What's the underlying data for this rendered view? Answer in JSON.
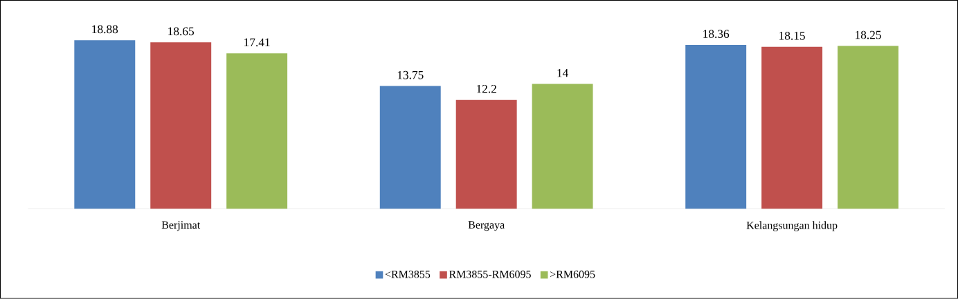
{
  "chart_data": {
    "type": "bar",
    "categories": [
      "Berjimat",
      "Bergaya",
      "Kelangsungan hidup"
    ],
    "series": [
      {
        "name": "<RM3855",
        "color": "#4f81bd",
        "values": [
          18.88,
          13.75,
          18.36
        ]
      },
      {
        "name": "RM3855-RM6095",
        "color": "#c0504d",
        "values": [
          18.65,
          12.2,
          18.15
        ]
      },
      {
        "name": ">RM6095",
        "color": "#9bbb59",
        "values": [
          17.41,
          14,
          18.25
        ]
      }
    ],
    "data_labels": true,
    "legend": "bottom"
  }
}
